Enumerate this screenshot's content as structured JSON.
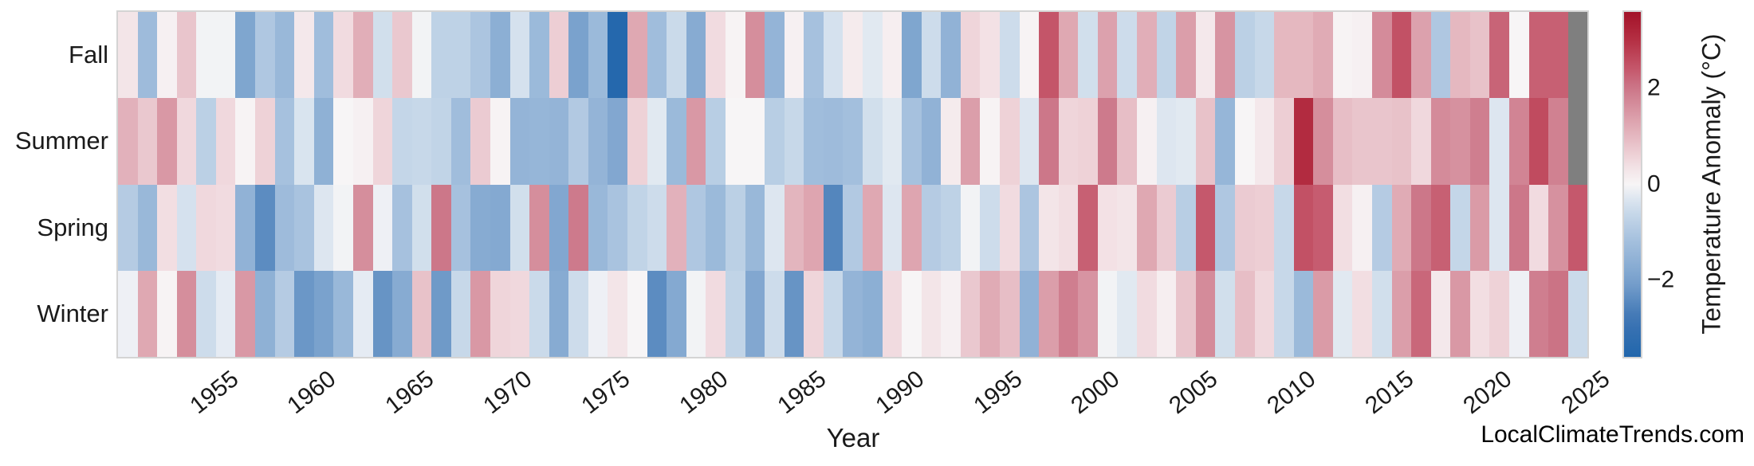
{
  "watermark": "LocalClimateTrends.com",
  "colors": {
    "max_red": "#a31329",
    "mid_white": "#f7f5f6",
    "min_blue": "#2166ac",
    "missing_gray": "#7f7f7f",
    "frame_gray": "#d4d4d4",
    "text": "#1a1a1a"
  },
  "chart_data": {
    "type": "heatmap",
    "title": "",
    "xlabel": "Year",
    "ylabel": "",
    "colorbar_label": "Temperature Anomaly (°C)",
    "legend_position": "right-colorbar",
    "grid": false,
    "value_range": [
      -3.6,
      3.6
    ],
    "colorbar_ticks": [
      {
        "label": "2",
        "value": 2
      },
      {
        "label": "0",
        "value": 0
      },
      {
        "label": "−2",
        "value": -2
      }
    ],
    "x_tick_labels": [
      "1955",
      "1960",
      "1965",
      "1970",
      "1975",
      "1980",
      "1985",
      "1990",
      "1995",
      "2000",
      "2005",
      "2010",
      "2015",
      "2020",
      "2025"
    ],
    "rows": [
      "Fall",
      "Summer",
      "Spring",
      "Winter"
    ],
    "years": [
      1951,
      1952,
      1953,
      1954,
      1955,
      1956,
      1957,
      1958,
      1959,
      1960,
      1961,
      1962,
      1963,
      1964,
      1965,
      1966,
      1967,
      1968,
      1969,
      1970,
      1971,
      1972,
      1973,
      1974,
      1975,
      1976,
      1977,
      1978,
      1979,
      1980,
      1981,
      1982,
      1983,
      1984,
      1985,
      1986,
      1987,
      1988,
      1989,
      1990,
      1991,
      1992,
      1993,
      1994,
      1995,
      1996,
      1997,
      1998,
      1999,
      2000,
      2001,
      2002,
      2003,
      2004,
      2005,
      2006,
      2007,
      2008,
      2009,
      2010,
      2011,
      2012,
      2013,
      2014,
      2015,
      2016,
      2017,
      2018,
      2019,
      2020,
      2021,
      2022,
      2023,
      2024,
      2025
    ],
    "missing_value_note": "gray cells = no data (Fall and Summer 2025)",
    "series": [
      {
        "name": "Fall",
        "values": [
          0.3,
          -1.3,
          0.1,
          0.8,
          -0.05,
          -0.05,
          -1.9,
          -1.0,
          -1.4,
          0.25,
          -1.25,
          0.45,
          1.15,
          -0.45,
          0.75,
          -0.05,
          -0.75,
          -0.75,
          -1.05,
          -1.65,
          -0.4,
          -1.35,
          0.65,
          -2.0,
          -1.35,
          -3.5,
          1.25,
          -1.25,
          -0.55,
          -1.75,
          0.45,
          0.05,
          1.65,
          -1.5,
          0.1,
          -1.15,
          -0.4,
          0.2,
          -0.25,
          0.15,
          -1.9,
          -0.5,
          -1.55,
          0.55,
          0.35,
          -0.5,
          0.05,
          2.45,
          1.25,
          -0.45,
          1.35,
          -0.5,
          1.15,
          -0.7,
          1.4,
          0.25,
          1.55,
          -0.8,
          -0.6,
          1.0,
          1.0,
          1.2,
          0.05,
          0.1,
          1.7,
          2.5,
          1.35,
          -1.0,
          1.0,
          0.85,
          2.25,
          0.0,
          2.3,
          2.3,
          null
        ]
      },
      {
        "name": "Summer",
        "values": [
          1.1,
          0.75,
          1.5,
          0.5,
          -0.8,
          0.5,
          0.05,
          0.6,
          -1.15,
          -0.35,
          -1.6,
          0.0,
          0.1,
          0.55,
          -0.65,
          -0.6,
          -0.7,
          -1.25,
          0.7,
          0.05,
          -1.5,
          -1.45,
          -1.5,
          -0.95,
          -1.5,
          -1.85,
          0.6,
          -0.25,
          -1.35,
          1.5,
          -0.85,
          0.0,
          0.0,
          -0.85,
          -0.6,
          -1.25,
          -1.3,
          -1.2,
          -0.45,
          -0.25,
          -1.15,
          -1.55,
          0.2,
          1.4,
          0.05,
          0.6,
          -0.3,
          2.0,
          0.55,
          0.6,
          1.95,
          0.9,
          0.1,
          -0.3,
          -0.25,
          0.85,
          -1.45,
          0.0,
          0.25,
          0.65,
          3.1,
          1.65,
          0.9,
          0.8,
          0.8,
          0.85,
          0.5,
          1.7,
          1.6,
          1.9,
          -0.3,
          1.8,
          2.6,
          1.85,
          null
        ]
      },
      {
        "name": "Spring",
        "values": [
          -0.9,
          -1.4,
          0.4,
          -0.4,
          0.5,
          0.45,
          -1.55,
          -2.4,
          -1.3,
          -1.1,
          -0.3,
          -0.05,
          1.65,
          -0.1,
          -1.15,
          -0.45,
          2.0,
          -1.15,
          -1.75,
          -1.8,
          -0.45,
          1.65,
          -1.85,
          1.95,
          -1.4,
          -1.1,
          -0.7,
          -0.5,
          1.1,
          -1.0,
          -1.35,
          -0.8,
          -1.4,
          -0.3,
          1.05,
          1.3,
          -2.5,
          -0.95,
          1.25,
          -0.3,
          1.3,
          -0.9,
          -0.75,
          -0.05,
          -0.5,
          0.45,
          -1.05,
          0.3,
          0.4,
          2.3,
          0.35,
          0.3,
          1.25,
          0.7,
          -0.85,
          2.4,
          -1.0,
          0.7,
          0.65,
          -0.6,
          2.5,
          2.35,
          0.4,
          0.1,
          -0.9,
          1.2,
          2.0,
          2.3,
          -0.65,
          1.45,
          -0.3,
          2.0,
          0.45,
          1.6,
          2.4
        ]
      },
      {
        "name": "Winter",
        "values": [
          -0.1,
          1.25,
          0.05,
          1.65,
          -0.5,
          -0.2,
          1.5,
          -1.6,
          -0.9,
          -2.2,
          -2.0,
          -1.4,
          -0.2,
          -2.25,
          -1.75,
          0.85,
          -2.15,
          -0.6,
          1.5,
          0.55,
          0.5,
          -0.55,
          -1.75,
          -0.5,
          -0.1,
          0.3,
          0.0,
          -2.4,
          -1.8,
          -0.05,
          0.45,
          -0.7,
          -1.85,
          -0.5,
          -2.25,
          0.55,
          -0.6,
          -1.5,
          -1.65,
          0.45,
          0.0,
          0.3,
          0.1,
          0.75,
          1.2,
          0.9,
          -1.55,
          1.4,
          1.9,
          1.55,
          -0.05,
          -0.25,
          0.45,
          0.15,
          0.8,
          1.7,
          -0.45,
          0.9,
          0.5,
          -0.6,
          -1.35,
          1.45,
          -0.25,
          0.4,
          -0.45,
          1.4,
          2.2,
          0.25,
          1.5,
          0.4,
          0.6,
          -0.1,
          1.9,
          2.05,
          -0.55
        ]
      }
    ]
  }
}
